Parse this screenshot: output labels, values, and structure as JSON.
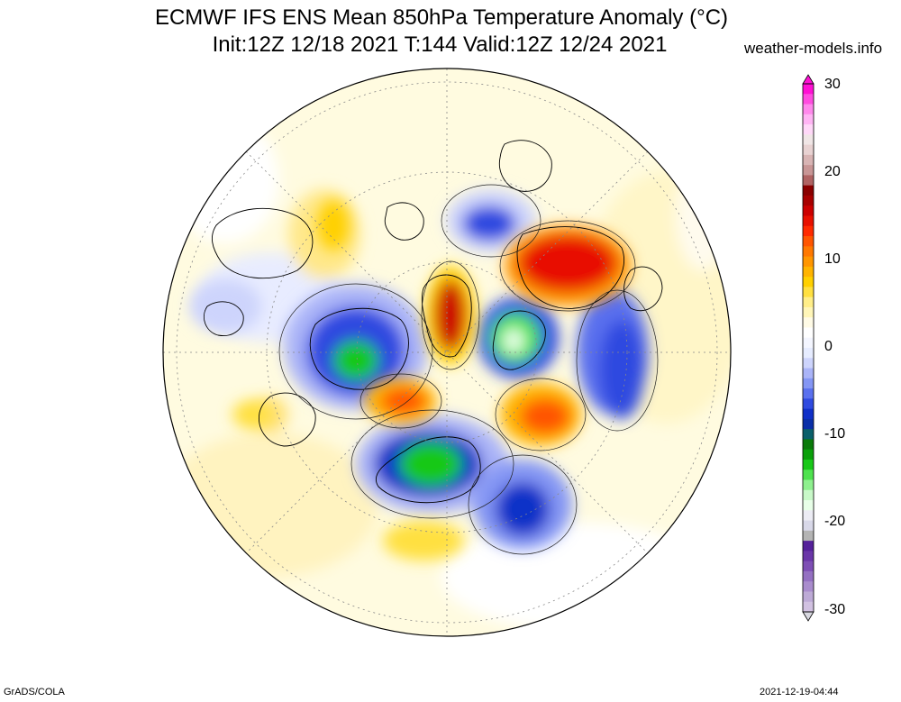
{
  "title_line1": "ECMWF IFS ENS Mean 850hPa Temperature Anomaly (°C)",
  "title_line2": "Init:12Z 12/18 2021  T:144 Valid:12Z 12/24 2021",
  "site": "weather-models.info",
  "footer_left": "GrADS/COLA",
  "footer_right": "2021-12-19-04:44",
  "colorbar": {
    "min": -30,
    "max": 30,
    "tick_labels": [
      "30",
      "20",
      "10",
      "0",
      "-10",
      "-20",
      "-30"
    ],
    "colors": [
      "#d1c1e1",
      "#bdaad6",
      "#a98ccd",
      "#9470c2",
      "#7e4fb5",
      "#6a36a8",
      "#55219a",
      "#b4b4b4",
      "#d8d8e8",
      "#ececf4",
      "#e8ffe8",
      "#c8f8c8",
      "#8ef08e",
      "#4ee24e",
      "#18c818",
      "#0aa00a",
      "#0a7a0a",
      "#0a5f6a",
      "#0a2fa8",
      "#1030c8",
      "#2f4ae0",
      "#5a70ee",
      "#8496f4",
      "#aab4f8",
      "#cdd4fc",
      "#e6ecff",
      "#f4f6ff",
      "#ffffff",
      "#fffbe6",
      "#fff6b8",
      "#ffee88",
      "#ffe040",
      "#ffd000",
      "#ffb400",
      "#ff9600",
      "#ff7800",
      "#ff5500",
      "#ff2a00",
      "#e81000",
      "#cc0000",
      "#a80000",
      "#8a0000",
      "#b06464",
      "#c89696",
      "#d8b4b4",
      "#e8d2d2",
      "#f0e6e6",
      "#ffd8f8",
      "#ffb4f4",
      "#ff88ec",
      "#ff4ce0",
      "#ff10d4"
    ]
  }
}
